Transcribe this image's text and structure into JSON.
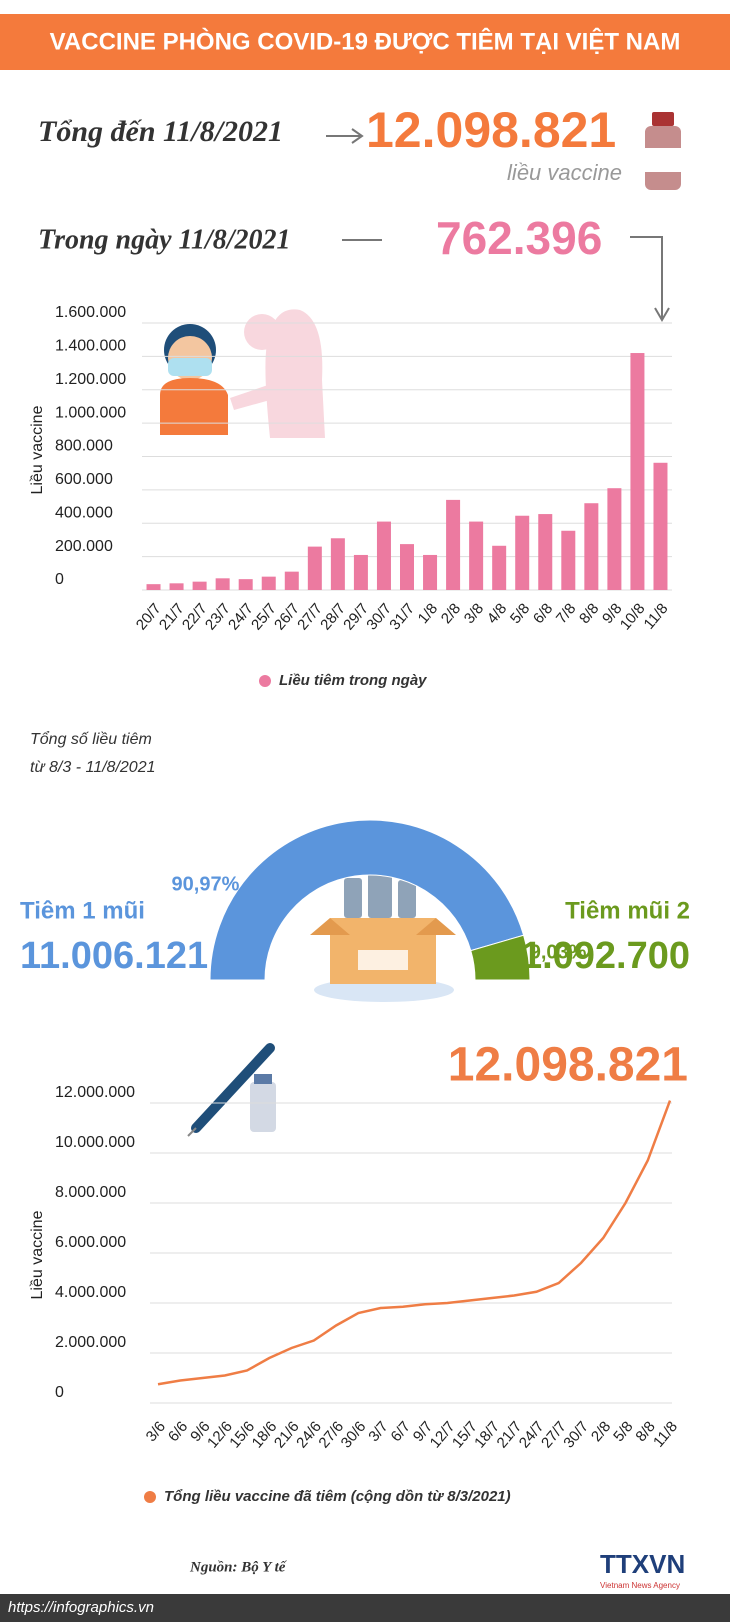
{
  "title": "VACCINE PHÒNG COVID-19 ĐƯỢC TIÊM TẠI VIỆT NAM",
  "summary": {
    "total_label": "Tổng đến 11/8/2021",
    "total": "12.098.821",
    "unit": "liều vaccine",
    "day_label": "Trong ngày 11/8/2021",
    "day": "762.396"
  },
  "chart_data": [
    {
      "type": "bar",
      "ylabel": "Liều vaccine",
      "categories": [
        "20/7",
        "21/7",
        "22/7",
        "23/7",
        "24/7",
        "25/7",
        "26/7",
        "27/7",
        "28/7",
        "29/7",
        "30/7",
        "31/7",
        "1/8",
        "2/8",
        "3/8",
        "4/8",
        "5/8",
        "6/8",
        "7/8",
        "8/8",
        "9/8",
        "10/8",
        "11/8"
      ],
      "series": [
        {
          "name": "Liều tiêm trong ngày",
          "color": "#ec7aa0",
          "values": [
            35000,
            40000,
            50000,
            70000,
            65000,
            80000,
            110000,
            260000,
            310000,
            210000,
            410000,
            275000,
            210000,
            540000,
            410000,
            265000,
            445000,
            455000,
            355000,
            520000,
            610000,
            1420000,
            762396
          ]
        }
      ],
      "ylim": [
        0,
        1600000
      ],
      "yticks": [
        0,
        {
          "value": 200000,
          "label": "200.000"
        },
        {
          "value": 400000,
          "label": "400.000"
        },
        {
          "value": 600000,
          "label": "600.000"
        },
        {
          "value": 800000,
          "label": "800.000"
        },
        {
          "value": 1000000,
          "label": "1.000.000"
        },
        {
          "value": 1200000,
          "label": "1.200.000"
        },
        {
          "value": 1400000,
          "label": "1.400.000"
        },
        {
          "value": 1600000,
          "label": "1.600.000"
        }
      ],
      "grid": true
    },
    {
      "type": "pie",
      "subtitle": [
        "Tổng số liều tiêm",
        "từ 8/3 - 11/8/2021"
      ],
      "categories": [
        "Tiêm 1 mũi",
        "Tiêm mũi 2"
      ],
      "values": [
        90.97,
        9.03
      ],
      "value_labels": [
        "90,97%",
        "9,03%"
      ],
      "colors": [
        "#5b95dc",
        "#6b9a1e"
      ],
      "counts": [
        "11.006.121",
        "1.092.700"
      ]
    },
    {
      "type": "line",
      "ylabel": "Liều vaccine",
      "annotation": "12.098.821",
      "categories": [
        "3/6",
        "6/6",
        "9/6",
        "12/6",
        "15/6",
        "18/6",
        "21/6",
        "24/6",
        "27/6",
        "30/6",
        "3/7",
        "6/7",
        "9/7",
        "12/7",
        "15/7",
        "18/7",
        "21/7",
        "24/7",
        "27/7",
        "30/7",
        "2/8",
        "5/8",
        "8/8",
        "11/8"
      ],
      "series": [
        {
          "name": "Tổng liều vaccine đã tiêm (cộng dồn từ 8/3/2021)",
          "color": "#ef7d45",
          "values": [
            750000,
            900000,
            1000000,
            1100000,
            1300000,
            1800000,
            2200000,
            2500000,
            3100000,
            3600000,
            3800000,
            3850000,
            3950000,
            4000000,
            4100000,
            4200000,
            4300000,
            4450000,
            4800000,
            5600000,
            6600000,
            8000000,
            9700000,
            12098821
          ]
        }
      ],
      "ylim": [
        0,
        12000000
      ],
      "yticks": [
        0,
        {
          "value": 2000000,
          "label": "2.000.000"
        },
        {
          "value": 4000000,
          "label": "4.000.000"
        },
        {
          "value": 6000000,
          "label": "6.000.000"
        },
        {
          "value": 8000000,
          "label": "8.000.000"
        },
        {
          "value": 10000000,
          "label": "10.000.000"
        },
        {
          "value": 12000000,
          "label": "12.000.000"
        }
      ],
      "grid": true
    }
  ],
  "source": "Nguồn: Bộ Y tế",
  "url": "https://infographics.vn",
  "brand": "TTXVN",
  "brand_sub": "Vietnam News Agency"
}
